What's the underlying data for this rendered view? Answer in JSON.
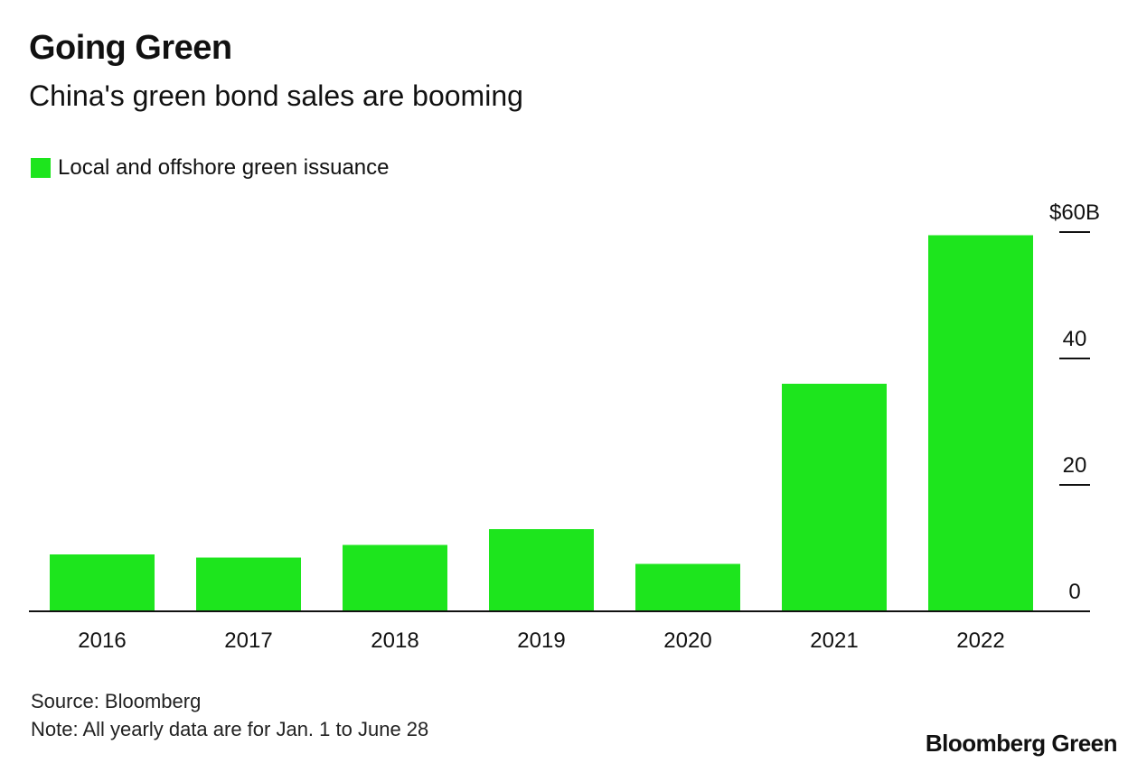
{
  "colors": {
    "bar": "#1de51d",
    "axis": "#111111",
    "text": "#111111"
  },
  "header": {
    "title": "Going Green",
    "subtitle": "China's green bond sales are booming"
  },
  "footer": {
    "source": "Source: Bloomberg",
    "note": "Note: All yearly data are for Jan. 1 to June 28",
    "brand": "Bloomberg Green"
  },
  "chart_data": {
    "type": "bar",
    "title": "Going Green",
    "subtitle": "China's green bond sales are booming",
    "legend": [
      "Local and offshore green issuance"
    ],
    "legend_position": "top-left",
    "categories": [
      "2016",
      "2017",
      "2018",
      "2019",
      "2020",
      "2021",
      "2022"
    ],
    "series": [
      {
        "name": "Local and offshore green issuance",
        "values": [
          9,
          8.5,
          10.5,
          13,
          7.5,
          36,
          59.5
        ]
      }
    ],
    "y_ticks": [
      0,
      20,
      40,
      60
    ],
    "y_tick_labels": [
      "0",
      "20",
      "40",
      "$60B"
    ],
    "ylim": [
      0,
      60
    ],
    "y_axis_side": "right",
    "grid": false,
    "xlabel": "",
    "ylabel": ""
  }
}
